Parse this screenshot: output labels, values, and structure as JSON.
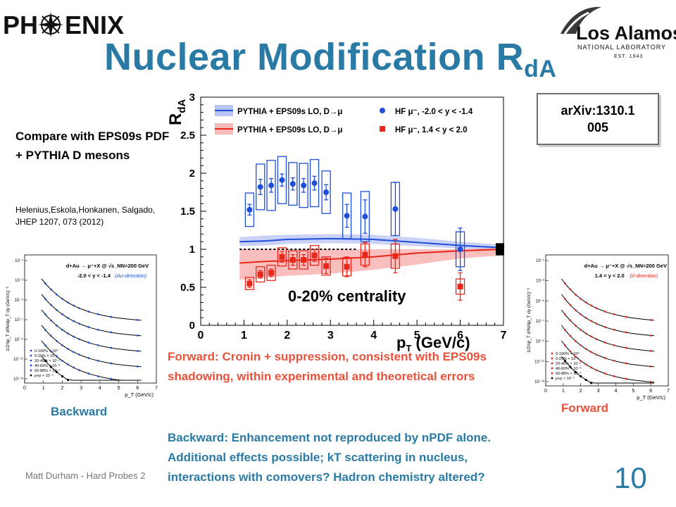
{
  "slide": {
    "title_main": "Nuclear Modification R",
    "title_sub": "dA",
    "arxiv": "arXiv:1310.1\n005",
    "compare_note": "Compare with EPS09s PDF + PYTHIA D mesons",
    "citation": "Helenius,Eskola,Honkanen, Salgado, JHEP 1207, 073 (2012)",
    "label_backward": "Backward",
    "label_forward": "Forward",
    "forward_text": "Forward: Cronin + suppression, consistent with EPS09s shadowing, within experimental and theoretical errors",
    "backward_text": "Backward: Enhancement not reproduced by nPDF alone.  Additional effects possible; kT scattering in nucleus, interactions with comovers? Hadron chemistry altered?",
    "footer": "Matt Durham - Hard Probes 2",
    "page_number": "10",
    "logo_left_text": "PH",
    "logo_left_text2": "ENIX",
    "logo_right_main": "Los Alamos",
    "logo_right_sub": "NATIONAL LABORATORY",
    "logo_right_est": "EST. 1943"
  },
  "colors": {
    "title": "#2a7aa6",
    "forward": "#e8523b",
    "blue_series": "#1f4fd8",
    "red_series": "#e8261a",
    "blue_band": "#8a9cf0",
    "red_band": "#f48a8a"
  },
  "chart_data": [
    {
      "type": "scatter",
      "ylabel": "R",
      "ylabel_sub": "dA",
      "xlabel": "p",
      "xlabel_sub": "T",
      "xlabel_unit": " (GeV/c)",
      "xlim": [
        0,
        7
      ],
      "ylim": [
        0,
        3
      ],
      "xticks": [
        "0",
        "1",
        "2",
        "3",
        "4",
        "5",
        "6",
        "7"
      ],
      "yticks": [
        "0",
        "0.5",
        "1",
        "1.5",
        "2",
        "2.5",
        "3"
      ],
      "annotation": "0-20% centrality",
      "legend_position": "top",
      "legend": [
        {
          "label": "PYTHIA + EPS09s LO, D→μ",
          "kind": "band",
          "color": "blue"
        },
        {
          "label": "HF μ⁻, -2.0 < y < -1.4",
          "kind": "circle",
          "color": "blue"
        },
        {
          "label": "PYTHIA + EPS09s LO, D→μ",
          "kind": "band",
          "color": "red"
        },
        {
          "label": "HF μ⁻, 1.4 < y < 2.0",
          "kind": "square",
          "color": "red"
        }
      ],
      "series": [
        {
          "marker": "circle",
          "color": "blue",
          "x": [
            1.13,
            1.38,
            1.63,
            1.88,
            2.13,
            2.38,
            2.63,
            2.9,
            3.38,
            3.8,
            4.5,
            6.0
          ],
          "y": [
            1.52,
            1.82,
            1.84,
            1.91,
            1.86,
            1.84,
            1.87,
            1.75,
            1.44,
            1.43,
            1.53,
            1.0
          ],
          "stat_err": [
            0.07,
            0.1,
            0.09,
            0.08,
            0.08,
            0.09,
            0.09,
            0.1,
            0.15,
            0.22,
            0.35,
            0.28
          ],
          "sys_err": [
            0.22,
            0.3,
            0.33,
            0.31,
            0.28,
            0.29,
            0.31,
            0.28,
            0.3,
            0.33,
            0.35,
            0.23
          ]
        },
        {
          "marker": "square",
          "color": "red",
          "x": [
            1.13,
            1.38,
            1.63,
            1.88,
            2.13,
            2.38,
            2.63,
            2.9,
            3.38,
            3.8,
            4.5,
            6.0
          ],
          "y": [
            0.55,
            0.67,
            0.69,
            0.9,
            0.86,
            0.86,
            0.92,
            0.78,
            0.77,
            0.93,
            0.91,
            0.51
          ],
          "stat_err": [
            0.05,
            0.05,
            0.05,
            0.07,
            0.07,
            0.07,
            0.08,
            0.1,
            0.13,
            0.16,
            0.22,
            0.18
          ],
          "sys_err": [
            0.08,
            0.1,
            0.1,
            0.12,
            0.12,
            0.12,
            0.13,
            0.12,
            0.12,
            0.14,
            0.16,
            0.1
          ]
        }
      ],
      "bands": [
        {
          "color": "blue",
          "x": [
            0.9,
            1.5,
            2.0,
            3.0,
            4.0,
            5.0,
            6.0,
            7.0
          ],
          "y": [
            1.1,
            1.11,
            1.13,
            1.14,
            1.13,
            1.09,
            1.05,
            1.02
          ],
          "lo": [
            1.04,
            1.05,
            1.07,
            1.08,
            1.07,
            1.04,
            1.01,
            0.99
          ],
          "hi": [
            1.16,
            1.18,
            1.19,
            1.2,
            1.19,
            1.15,
            1.1,
            1.06
          ]
        },
        {
          "color": "red",
          "x": [
            0.9,
            1.5,
            2.0,
            3.0,
            4.0,
            5.0,
            6.0,
            7.0
          ],
          "y": [
            0.82,
            0.84,
            0.85,
            0.87,
            0.9,
            0.95,
            0.98,
            1.0
          ],
          "lo": [
            0.6,
            0.63,
            0.65,
            0.68,
            0.73,
            0.8,
            0.88,
            0.92
          ],
          "hi": [
            1.0,
            1.0,
            1.0,
            1.0,
            1.0,
            1.0,
            1.0,
            1.02
          ]
        }
      ]
    },
    {
      "type": "scatter",
      "yscale": "log",
      "title": "d+Au → μ⁻+X @ √s_NN=200 GeV",
      "subtitle": "-2.0 < y < -1.4",
      "subtitle_note": "(Au-direction)",
      "ylabel": "1/2πp_T d²N/dp_T dy (GeV/c)⁻²",
      "xlabel": "p_T (GeV/c)",
      "xlim": [
        0,
        7
      ],
      "xticks": [
        "0",
        "1",
        "2",
        "3",
        "4",
        "5",
        "6",
        "7"
      ],
      "yticks": [
        "10⁻¹",
        "10⁻³",
        "10⁻⁵",
        "10⁻⁷",
        "10⁻⁹",
        "10⁻¹¹",
        "10⁻¹³"
      ],
      "legend": [
        "0-100% × 10⁰",
        "0-20% × 10⁻¹",
        "20-40% × 10⁻²",
        "40-60% × 10⁻³",
        "60-88% × 10⁻⁴",
        "p+p × 10⁻⁵"
      ]
    },
    {
      "type": "scatter",
      "yscale": "log",
      "title": "d+Au → μ⁻+X @ √s_NN=200 GeV",
      "subtitle": "1.4 < y < 2.0",
      "subtitle_note": "(d-direction)",
      "ylabel": "1/2πp_T d²N/dp_T dy (GeV/c)⁻²",
      "xlabel": "p_T (GeV/c)",
      "xlim": [
        0,
        7
      ],
      "xticks": [
        "0",
        "1",
        "2",
        "3",
        "4",
        "5",
        "6",
        "7"
      ],
      "yticks": [
        "10⁻¹",
        "10⁻³",
        "10⁻⁵",
        "10⁻⁷",
        "10⁻⁹",
        "10⁻¹¹",
        "10⁻¹³"
      ],
      "legend": [
        "0-100% × 10⁰",
        "0-20% × 10⁻¹",
        "20-40% × 10⁻²",
        "40-60% × 10⁻³",
        "60-88% × 10⁻⁴",
        "p+p × 10⁻⁵"
      ]
    }
  ]
}
